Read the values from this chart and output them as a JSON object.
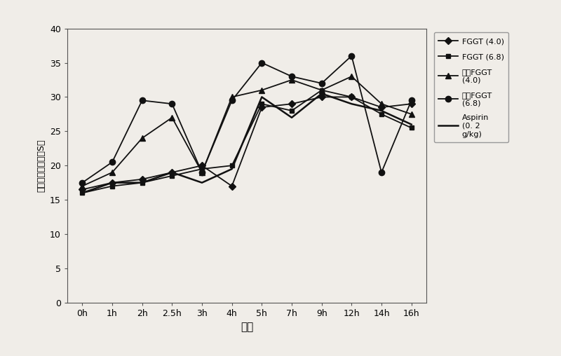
{
  "x_labels": [
    "0h",
    "1h",
    "2h",
    "2.5h",
    "3h",
    "4h",
    "5h",
    "7h",
    "9h",
    "12h",
    "14h",
    "16h"
  ],
  "x_positions": [
    0,
    1,
    2,
    3,
    4,
    5,
    6,
    7,
    8,
    9,
    10,
    11
  ],
  "series": [
    {
      "label": "FGGT (4.0)",
      "marker": "D",
      "markersize": 5,
      "linewidth": 1.3,
      "color": "#111111",
      "values": [
        16.5,
        17.5,
        18.0,
        19.0,
        20.0,
        17.0,
        28.5,
        29.0,
        30.0,
        30.0,
        28.5,
        29.0
      ]
    },
    {
      "label": "FGGT (6.8)",
      "marker": "s",
      "markersize": 5,
      "linewidth": 1.3,
      "color": "#111111",
      "values": [
        16.0,
        17.0,
        17.5,
        18.5,
        19.5,
        20.0,
        29.0,
        28.0,
        31.0,
        30.0,
        27.5,
        25.5
      ]
    },
    {
      "label": "发酵FGGT\n(4.0)",
      "marker": "^",
      "markersize": 6,
      "linewidth": 1.3,
      "color": "#111111",
      "values": [
        17.0,
        19.0,
        24.0,
        27.0,
        19.0,
        30.0,
        31.0,
        32.5,
        31.0,
        33.0,
        29.0,
        27.5
      ]
    },
    {
      "label": "发酵FGGT\n(6.8)",
      "marker": "o",
      "markersize": 6,
      "linewidth": 1.3,
      "color": "#111111",
      "values": [
        17.5,
        20.5,
        29.5,
        29.0,
        19.0,
        29.5,
        35.0,
        33.0,
        32.0,
        36.0,
        19.0,
        29.5
      ]
    },
    {
      "label": "Aspirin\n(0. 2\ng/kg)",
      "marker": "None",
      "markersize": 0,
      "linewidth": 1.8,
      "color": "#111111",
      "values": [
        16.0,
        17.5,
        17.5,
        19.0,
        17.5,
        19.5,
        30.0,
        27.0,
        30.5,
        29.0,
        28.0,
        26.0
      ]
    }
  ],
  "ylabel": "蹋后足所需时间（S）",
  "xlabel": "时间",
  "ylim": [
    0,
    40
  ],
  "yticks": [
    0,
    5,
    10,
    15,
    20,
    25,
    30,
    35,
    40
  ],
  "figsize": [
    8.0,
    5.08
  ],
  "dpi": 100,
  "bg_color": "#f0ede8"
}
